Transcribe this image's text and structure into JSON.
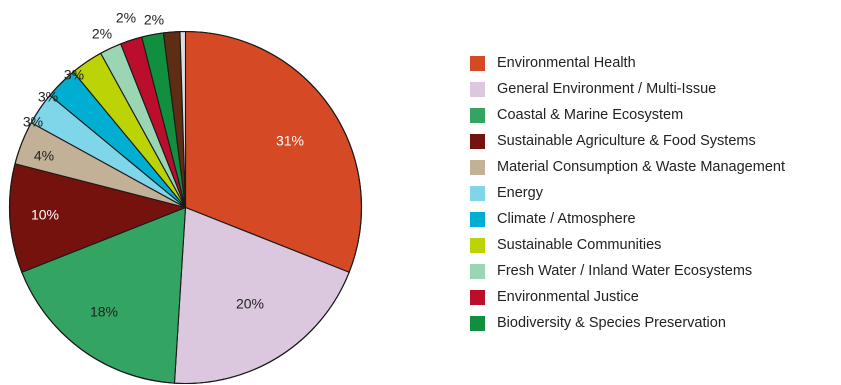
{
  "chart_data": {
    "type": "pie",
    "slices": [
      {
        "label": "Environmental Health",
        "value": 31,
        "display": "31%",
        "color": "#d54a25"
      },
      {
        "label": "General Environment / Multi-Issue",
        "value": 20,
        "display": "20%",
        "color": "#dbc7de"
      },
      {
        "label": "Coastal & Marine Ecosystem",
        "value": 18,
        "display": "18%",
        "color": "#34a462"
      },
      {
        "label": "Sustainable Agriculture & Food Systems",
        "value": 10,
        "display": "10%",
        "color": "#75120d"
      },
      {
        "label": "Material Consumption & Waste Management",
        "value": 4,
        "display": "4%",
        "color": "#c2b197"
      },
      {
        "label": "Energy",
        "value": 3,
        "display": "3%",
        "color": "#7fd6e8"
      },
      {
        "label": "Climate / Atmosphere",
        "value": 3,
        "display": "3%",
        "color": "#00aed1"
      },
      {
        "label": "Sustainable Communities",
        "value": 3,
        "display": "3%",
        "color": "#bcd305"
      },
      {
        "label": "Fresh Water / Inland Water Ecosystems",
        "value": 2,
        "display": "2%",
        "color": "#9ad6b4"
      },
      {
        "label": "Environmental Justice",
        "value": 2,
        "display": "2%",
        "color": "#bb0d2c"
      },
      {
        "label": "Biodiversity & Species Preservation",
        "value": 2,
        "display": "2%",
        "color": "#10903e"
      },
      {
        "label": "",
        "value": 1.5,
        "display": "",
        "color": "#5e2d13"
      },
      {
        "label": "",
        "value": 0.5,
        "display": "",
        "color": "#dcdde0"
      }
    ],
    "legend_placement": "right",
    "label_colors": {
      "inside_dark_bg": "#ffffff",
      "default": "#222222"
    }
  }
}
